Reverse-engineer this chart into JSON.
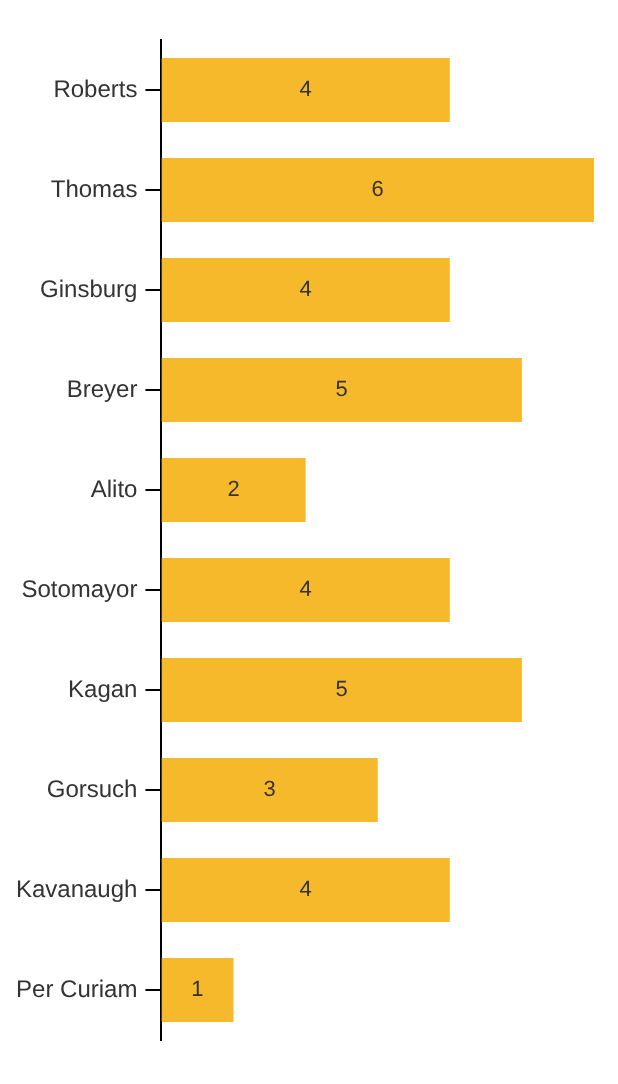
{
  "chart_data": {
    "type": "bar",
    "orientation": "horizontal",
    "categories": [
      "Roberts",
      "Thomas",
      "Ginsburg",
      "Breyer",
      "Alito",
      "Sotomayor",
      "Kagan",
      "Gorsuch",
      "Kavanaugh",
      "Per Curiam"
    ],
    "values": [
      4,
      6,
      4,
      5,
      2,
      4,
      5,
      3,
      4,
      1
    ],
    "color": "#f6b92b",
    "xlim": [
      0,
      6
    ],
    "data_labels": true,
    "legend": false,
    "tick_labels": "y"
  }
}
